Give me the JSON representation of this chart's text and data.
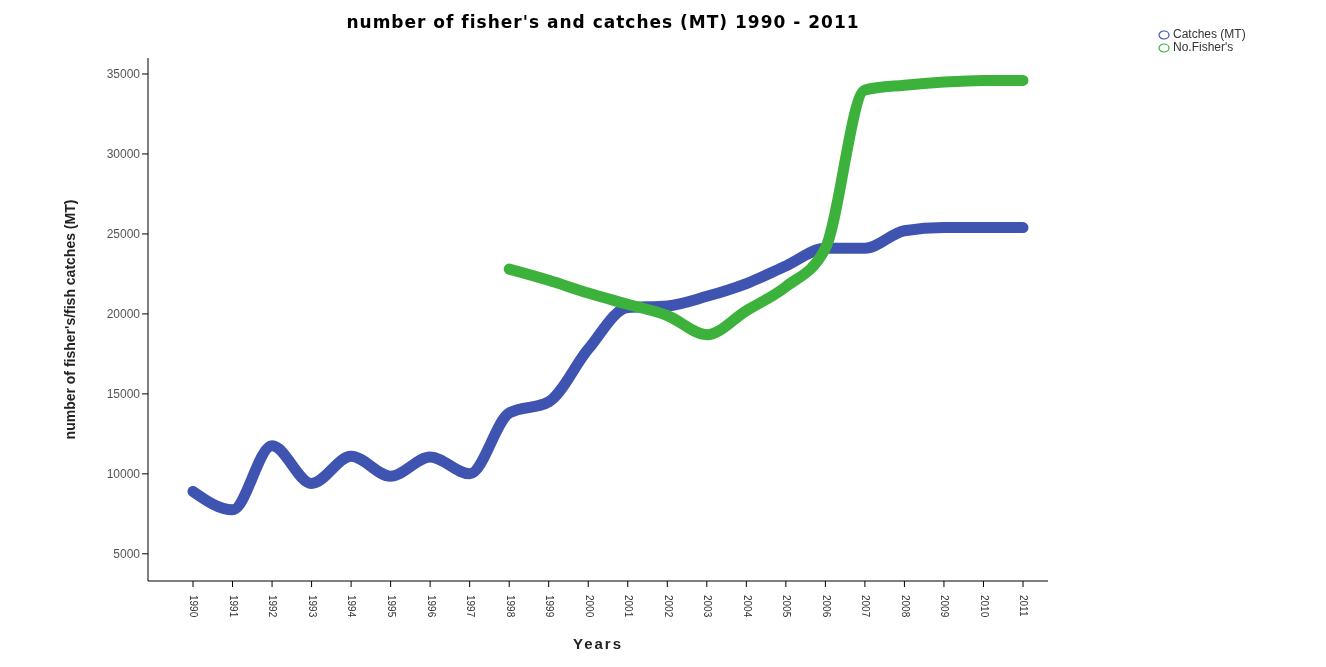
{
  "chart_data": {
    "type": "line",
    "title": "number of fisher's and catches (MT) 1990 - 2011",
    "xlabel": "Years",
    "ylabel": "number of fisher's/fish catches (MT)",
    "categories": [
      "1990",
      "1991",
      "1992",
      "1993",
      "1994",
      "1995",
      "1996",
      "1997",
      "1998",
      "1999",
      "2000",
      "2001",
      "2002",
      "2003",
      "2004",
      "2005",
      "2006",
      "2007",
      "2008",
      "2009",
      "2010",
      "2011"
    ],
    "series": [
      {
        "name": "Catches (MT)",
        "color": "#3f54b0",
        "values": [
          8900,
          7750,
          11750,
          9400,
          11100,
          9850,
          11050,
          10000,
          13800,
          14500,
          17800,
          20400,
          20500,
          21100,
          21900,
          23000,
          24100,
          24100,
          25200,
          25400,
          25400,
          25400
        ]
      },
      {
        "name": "No.Fisher's",
        "color": "#3cb13c",
        "values": [
          null,
          null,
          null,
          null,
          null,
          null,
          null,
          null,
          22800,
          22100,
          21300,
          20600,
          19900,
          18700,
          20200,
          21700,
          24100,
          34000,
          34300,
          34500,
          34600,
          34600
        ]
      }
    ],
    "ylim": [
      3300,
      36000
    ],
    "yticks": [
      5000,
      10000,
      15000,
      20000,
      25000,
      30000,
      35000
    ],
    "grid": false,
    "legend": "top right",
    "marker": "none",
    "line_style": "solid"
  }
}
